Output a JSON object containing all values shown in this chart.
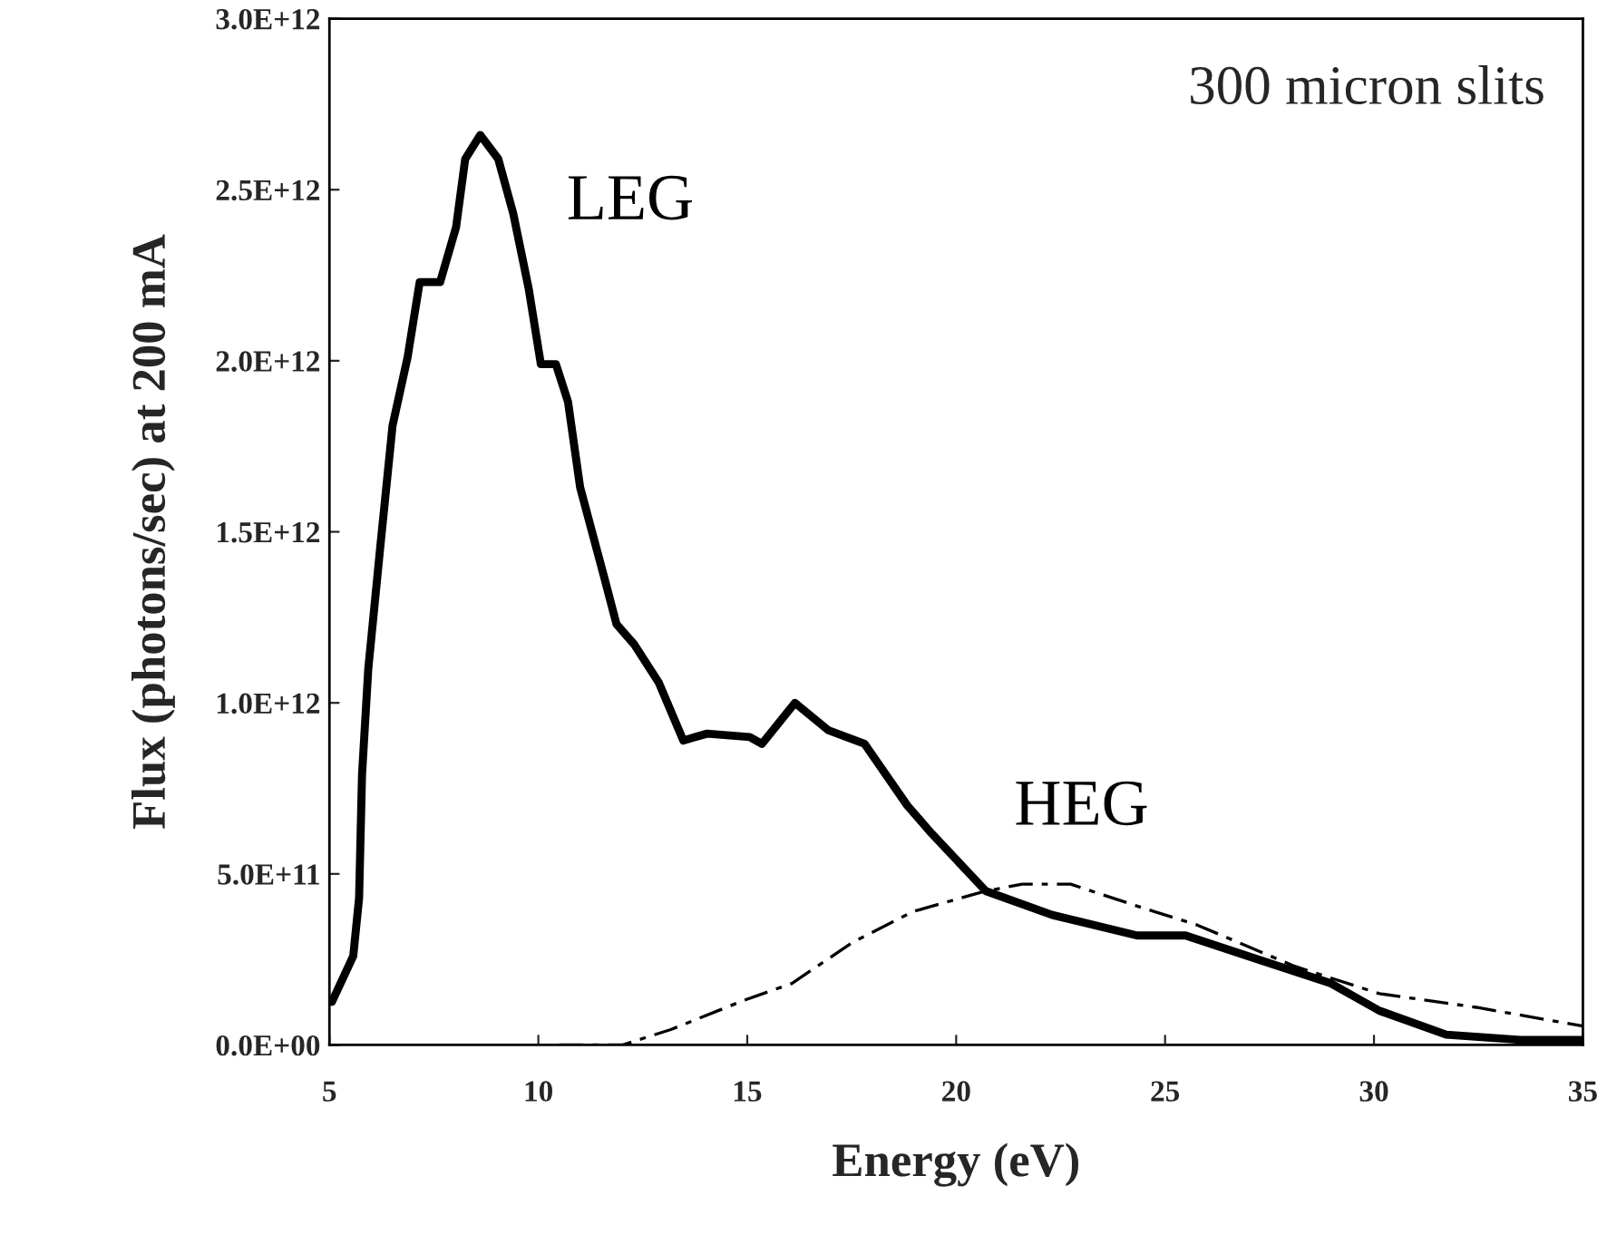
{
  "chart_data": {
    "type": "line",
    "xlabel": "Energy (eV)",
    "ylabel": "Flux (photons/sec) at 200 mA",
    "xlim": [
      5,
      35
    ],
    "xticks": [
      5,
      10,
      15,
      20,
      25,
      30,
      35
    ],
    "ylim": [
      0,
      3000000000000.0
    ],
    "yticks": [
      {
        "value": 0,
        "label": "0.0E+00"
      },
      {
        "value": 500000000000.0,
        "label": "5.0E+11"
      },
      {
        "value": 1000000000000.0,
        "label": "1.0E+12"
      },
      {
        "value": 1500000000000.0,
        "label": "1.5E+12"
      },
      {
        "value": 2000000000000.0,
        "label": "2.0E+12"
      },
      {
        "value": 2500000000000.0,
        "label": "2.5E+12"
      },
      {
        "value": 3000000000000.0,
        "label": "3.0E+12"
      }
    ],
    "grid": false,
    "legend": false,
    "marker": "none",
    "series": [
      {
        "name": "LEG",
        "color": "#000000",
        "line_style": "solid",
        "x": [
          5.06,
          5.57,
          5.71,
          5.78,
          5.93,
          6.22,
          6.51,
          6.87,
          7.16,
          7.65,
          8.03,
          8.25,
          8.61,
          9.04,
          9.4,
          9.77,
          10.06,
          10.42,
          10.71,
          11.0,
          11.57,
          11.87,
          12.3,
          12.88,
          13.47,
          14.04,
          15.06,
          15.35,
          16.14,
          16.94,
          17.81,
          18.83,
          19.4,
          20.71,
          22.3,
          24.33,
          25.49,
          27.23,
          28.97,
          30.13,
          31.73,
          33.5,
          35.0
        ],
        "values": [
          126000000000.0,
          260000000000.0,
          430000000000.0,
          790000000000.0,
          1100000000000.0,
          1460000000000.0,
          1810000000000.0,
          2010000000000.0,
          2230000000000.0,
          2230000000000.0,
          2390000000000.0,
          2590000000000.0,
          2660000000000.0,
          2590000000000.0,
          2430000000000.0,
          2210000000000.0,
          1990000000000.0,
          1990000000000.0,
          1880000000000.0,
          1630000000000.0,
          1370000000000.0,
          1230000000000.0,
          1170000000000.0,
          1060000000000.0,
          890000000000.0,
          910000000000.0,
          900000000000.0,
          880000000000.0,
          1000000000000.0,
          920000000000.0,
          880000000000.0,
          700000000000.0,
          620000000000.0,
          450000000000.0,
          380000000000.0,
          320000000000.0,
          320000000000.0,
          250000000000.0,
          180000000000.0,
          100000000000.0,
          30000000000.0,
          15000000000.0,
          15000000000.0
        ]
      },
      {
        "name": "HEG",
        "color": "#000000",
        "line_style": "dashed",
        "x": [
          10.5,
          12.01,
          13.17,
          14.91,
          16.07,
          17.52,
          18.97,
          19.84,
          20.71,
          21.58,
          22.74,
          24.48,
          25.78,
          28.1,
          30.13,
          32.45,
          35.0
        ],
        "values": [
          0,
          0,
          45000000000.0,
          130000000000.0,
          180000000000.0,
          300000000000.0,
          390000000000.0,
          420000000000.0,
          450000000000.0,
          470000000000.0,
          470000000000.0,
          400000000000.0,
          350000000000.0,
          230000000000.0,
          150000000000.0,
          110000000000.0,
          55000000000.0
        ]
      }
    ],
    "annotations": [
      "300 micron slits"
    ]
  }
}
